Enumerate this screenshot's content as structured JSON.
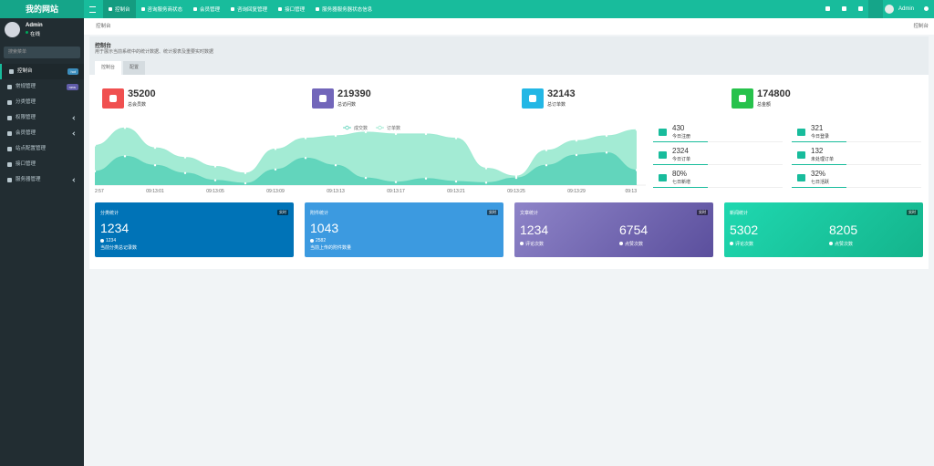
{
  "header": {
    "logo": "我的网站",
    "nav": [
      "控制台",
      "咨询服务商状态",
      "会员管理",
      "咨询回复管理",
      "接口管理",
      "服务器服务器状态信息"
    ],
    "user": "Admin"
  },
  "sidebar": {
    "user": "Admin",
    "status": "在线",
    "search": "搜索菜单",
    "menu": [
      {
        "label": "控制台",
        "badge": "hot",
        "color": "#3c8dbc"
      },
      {
        "label": "常规管理",
        "badge": "new",
        "color": "#605ca8"
      },
      {
        "label": "分类管理"
      },
      {
        "label": "权限管理",
        "expandable": true
      },
      {
        "label": "会员管理",
        "expandable": true
      },
      {
        "label": "站点配置管理"
      },
      {
        "label": "接口管理"
      },
      {
        "label": "服务器管理",
        "expandable": true
      }
    ]
  },
  "breadcrumb": {
    "current": "控制台",
    "right": "控制台"
  },
  "panel": {
    "title": "控制台",
    "description": "用于展示当前系统中的统计数据、统计报表及重要实时数据",
    "tabs": [
      "控制台",
      "配置"
    ]
  },
  "stats": [
    {
      "value": 35200,
      "label": "总会员数",
      "color": "#f05050"
    },
    {
      "value": 219390,
      "label": "总访问数",
      "color": "#7266ba"
    },
    {
      "value": 32143,
      "label": "总订单数",
      "color": "#23b7e5"
    },
    {
      "value": 174800,
      "label": "总金额",
      "color": "#27c24c"
    }
  ],
  "chart_data": {
    "type": "area",
    "legend": "top",
    "ylim": [
      0,
      1000
    ],
    "categories": [
      "2:57",
      null,
      "09:13:01",
      null,
      "09:13:05",
      null,
      "09:13:09",
      null,
      "09:13:13",
      null,
      "09:13:17",
      null,
      "09:13:21",
      null,
      "09:13:25",
      null,
      "09:13:29",
      null,
      "09:13"
    ],
    "series": [
      {
        "name": "成交数",
        "color": "#5fd4bb",
        "values": [
          230,
          480,
          330,
          200,
          80,
          30,
          260,
          450,
          330,
          120,
          50,
          110,
          60,
          40,
          120,
          330,
          500,
          540,
          250
        ]
      },
      {
        "name": "订单数",
        "color": "#9eead2",
        "values": [
          660,
          950,
          620,
          460,
          310,
          200,
          600,
          780,
          820,
          880,
          850,
          850,
          780,
          280,
          150,
          580,
          740,
          820,
          920
        ]
      }
    ]
  },
  "mini_stats": [
    {
      "value": 430,
      "label": "今日注册"
    },
    {
      "value": 321,
      "label": "今日登录"
    },
    {
      "value": 2324,
      "label": "今日订单"
    },
    {
      "value": 132,
      "label": "未处理订单"
    },
    {
      "value": "80%",
      "label": "七日新增"
    },
    {
      "value": "32%",
      "label": "七日活跃"
    }
  ],
  "cards": [
    {
      "title": "分类统计",
      "badge": "实时",
      "background": "#0073b7",
      "value": 1234,
      "sub_value": 1234,
      "sub_label": "当前分类总记录数"
    },
    {
      "title": "附件统计",
      "badge": "实时",
      "background": "#3c9ae0",
      "value": 1043,
      "sub_value": 2582,
      "sub_label": "当前上传的附件数量"
    },
    {
      "title": "文章统计",
      "badge": "实时",
      "background": "linear-gradient(135deg,#8e84c8,#5b4f9d)",
      "items": [
        {
          "value": 1234,
          "label": "评论次数"
        },
        {
          "value": 6754,
          "label": "点赞次数"
        }
      ]
    },
    {
      "title": "新闻统计",
      "badge": "实时",
      "background": "linear-gradient(135deg,#1fd8b0,#14b48c)",
      "items": [
        {
          "value": 5302,
          "label": "评论次数"
        },
        {
          "value": 8205,
          "label": "点赞次数"
        }
      ]
    }
  ]
}
